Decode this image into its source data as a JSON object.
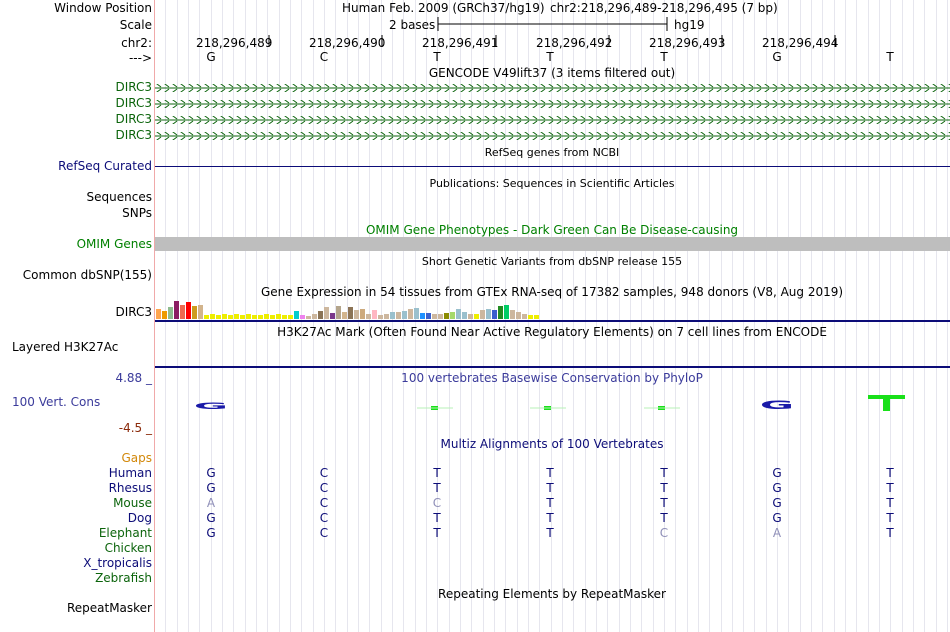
{
  "colors": {
    "gencode_green": "#0c640c",
    "refseq_navy": "#0c0c78",
    "omim_green": "#008000",
    "omim_bar": "#bebebe",
    "dark_gray_track": "#000000",
    "conservation_blue": "#3b3b9b",
    "conservation_low": "#8b2a0a",
    "gaps_orange": "#d2880a",
    "base_G": "#1a1aa8",
    "base_T": "#19e019",
    "divider": "#f0a9a9"
  },
  "position": {
    "label": "Window Position",
    "assembly": "Human Feb. 2009 (GRCh37/hg19)",
    "coords": "chr2:218,296,489-218,296,495 (7 bp)"
  },
  "scale": {
    "label": "Scale",
    "text": "2 bases",
    "db": "hg19"
  },
  "ruler": {
    "label": "chr2:",
    "ticks": [
      "218,296,489",
      "218,296,490",
      "218,296,491",
      "218,296,492",
      "218,296,493",
      "218,296,494"
    ]
  },
  "strand": {
    "label": "--->",
    "bases": [
      "G",
      "C",
      "T",
      "T",
      "T",
      "G",
      "T"
    ]
  },
  "gencode": {
    "title": "GENCODE V49lift37 (3 items filtered out)",
    "rows": [
      "DIRC3",
      "DIRC3",
      "DIRC3",
      "DIRC3"
    ]
  },
  "refseq": {
    "label": "RefSeq Curated",
    "title": "RefSeq genes from NCBI"
  },
  "publications": {
    "label": "Sequences",
    "title": "Publications: Sequences in Scientific Articles"
  },
  "snps": {
    "label": "SNPs"
  },
  "omim": {
    "label": "OMIM Genes",
    "title": "OMIM Gene Phenotypes - Dark Green Can Be Disease-causing"
  },
  "dbsnp": {
    "label": "Common dbSNP(155)",
    "title": "Short Genetic Variants from dbSNP release 155"
  },
  "gtex": {
    "label": "DIRC3",
    "title": "Gene Expression in 54 tissues from GTEx RNA-seq of 17382 samples, 948 donors (V8, Aug 2019)"
  },
  "h3k27ac": {
    "label": "Layered H3K27Ac",
    "title": "H3K27Ac Mark (Often Found Near Active Regulatory Elements) on 7 cell lines from ENCODE"
  },
  "phylop": {
    "label": "100 Vert. Cons",
    "max": "4.88 _",
    "min": "-4.5 _",
    "title": "100 vertebrates Basewise Conservation by PhyloP"
  },
  "multiz": {
    "title": "Multiz Alignments of 100 Vertebrates",
    "gaps_label": "Gaps",
    "species": [
      {
        "name": "Human",
        "bases": [
          "G",
          "C",
          "T",
          "T",
          "T",
          "G",
          "T"
        ]
      },
      {
        "name": "Rhesus",
        "bases": [
          "G",
          "C",
          "T",
          "T",
          "T",
          "G",
          "T"
        ]
      },
      {
        "name": "Mouse",
        "bases": [
          "A",
          "C",
          "C",
          "T",
          "T",
          "G",
          "T"
        ]
      },
      {
        "name": "Dog",
        "bases": [
          "G",
          "C",
          "T",
          "T",
          "T",
          "G",
          "T"
        ]
      },
      {
        "name": "Elephant",
        "bases": [
          "G",
          "C",
          "T",
          "T",
          "C",
          "A",
          "T"
        ]
      },
      {
        "name": "Chicken",
        "bases": []
      },
      {
        "name": "X_tropicalis",
        "bases": []
      },
      {
        "name": "Zebrafish",
        "bases": []
      }
    ]
  },
  "repeatmasker": {
    "label": "RepeatMasker",
    "title": "Repeating Elements by RepeatMasker"
  }
}
